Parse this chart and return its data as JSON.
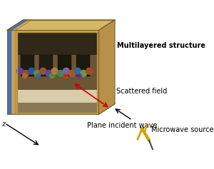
{
  "bg_color": "#ffffff",
  "wood_color": "#c8a055",
  "wood_dark": "#a07838",
  "wood_top": "#d4b868",
  "wood_right": "#b89048",
  "blue_color": "#4070c0",
  "layer_wood": "#c8a055",
  "paint_dark_upper": "#3a2e1a",
  "paint_mid": "#6a5030",
  "paint_figures": "#8a6040",
  "paint_table": "#d8cca8",
  "paint_lower_wall": "#857050",
  "scattered_color": "#cc0000",
  "font_size": 7.0,
  "label_scattered": "Scattered field",
  "label_incident": "Plane incident wave",
  "label_microwave": "Microwave source",
  "label_multilayer": "Multilayered structure",
  "label_z": "z"
}
